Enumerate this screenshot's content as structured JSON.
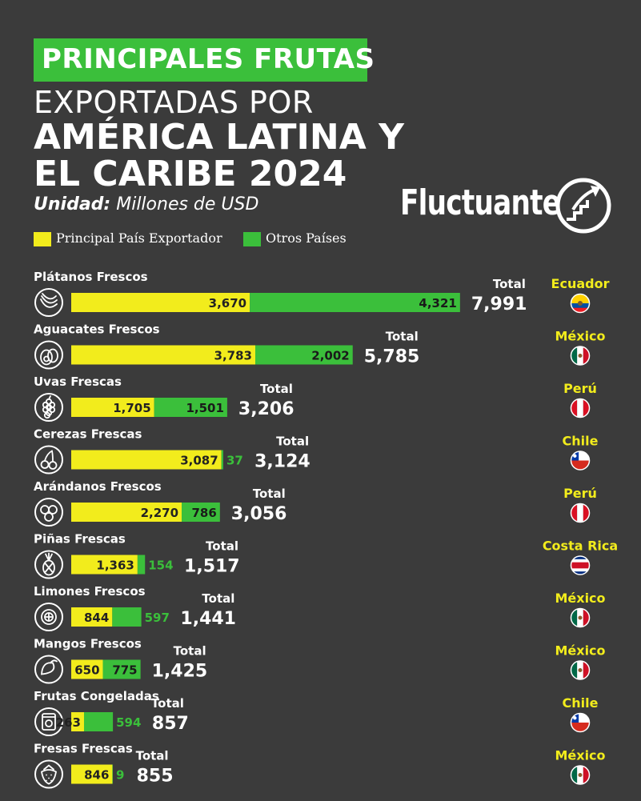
{
  "header": {
    "line1": "PRINCIPALES FRUTAS",
    "line2": "EXPORTADAS POR",
    "line3": "AMÉRICA LATINA Y",
    "line4": "EL CARIBE 2024",
    "unit_label": "Unidad:",
    "unit_value": "Millones de USD",
    "brand": "Fluctuante"
  },
  "legend": {
    "primary": "Principal País Exportador",
    "others": "Otros Países"
  },
  "colors": {
    "primary": "#f2ec1c",
    "others": "#3bbf3b",
    "background": "#3b3b3b",
    "country": "#f2ec1c"
  },
  "total_label": "Total",
  "chart_data": {
    "type": "bar",
    "stacked": true,
    "orientation": "horizontal",
    "unit": "Millones de USD",
    "categories": [
      "Plátanos Frescos",
      "Aguacates Frescos",
      "Uvas Frescas",
      "Cerezas Frescas",
      "Arándanos Frescos",
      "Piñas Frescas",
      "Limones Frescos",
      "Mangos Frescos",
      "Frutas Congeladas",
      "Fresas Frescas"
    ],
    "series": [
      {
        "name": "Principal País Exportador",
        "values": [
          3670,
          3783,
          1705,
          3087,
          2270,
          1363,
          844,
          650,
          263,
          846
        ]
      },
      {
        "name": "Otros Países",
        "values": [
          4321,
          2002,
          1501,
          37,
          786,
          154,
          597,
          775,
          594,
          9
        ]
      }
    ],
    "labels_primary": [
      "3,670",
      "3,783",
      "1,705",
      "3,087",
      "2,270",
      "1,363",
      "844",
      "650",
      "263",
      "846"
    ],
    "labels_others": [
      "4,321",
      "2,002",
      "1,501",
      "37",
      "786",
      "154",
      "597",
      "775",
      "594",
      "9"
    ],
    "totals": [
      "7,991",
      "5,785",
      "3,206",
      "3,124",
      "3,056",
      "1,517",
      "1,441",
      "1,425",
      "857",
      "855"
    ],
    "countries": [
      "Ecuador",
      "México",
      "Perú",
      "Chile",
      "Perú",
      "Costa Rica",
      "México",
      "México",
      "Chile",
      "México"
    ],
    "icons": [
      "banana-icon",
      "avocado-icon",
      "grapes-icon",
      "cherries-icon",
      "blueberries-icon",
      "pineapple-icon",
      "lemon-icon",
      "mango-icon",
      "frozen-fruit-icon",
      "strawberry-icon"
    ],
    "flags": [
      "ecuador-flag-icon",
      "mexico-flag-icon",
      "peru-flag-icon",
      "chile-flag-icon",
      "peru-flag-icon",
      "costa-rica-flag-icon",
      "mexico-flag-icon",
      "mexico-flag-icon",
      "chile-flag-icon",
      "mexico-flag-icon"
    ]
  }
}
